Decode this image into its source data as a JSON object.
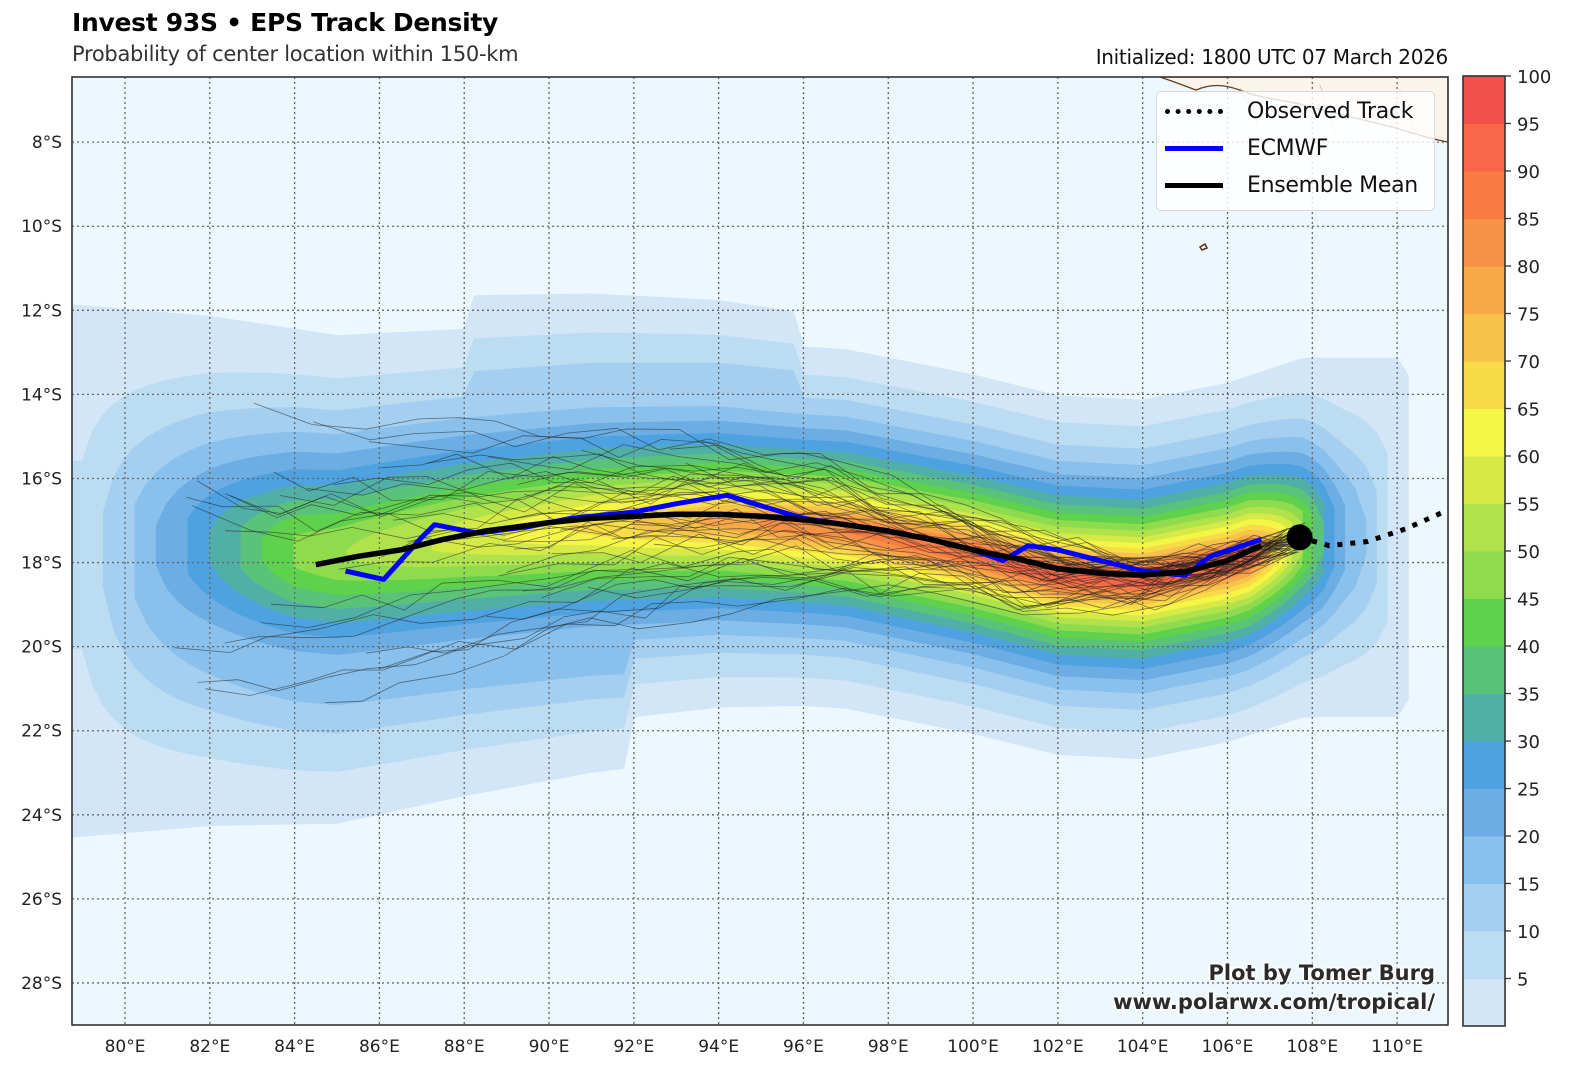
{
  "header": {
    "title": "Invest 93S • EPS Track Density",
    "subtitle": "Probability of center location within 150-km",
    "initialized": "Initialized: 1800 UTC 07 March 2026"
  },
  "legend": {
    "items": [
      {
        "label": "Observed Track",
        "style": "dotted",
        "color": "#000000"
      },
      {
        "label": "ECMWF",
        "style": "solid",
        "color": "#0000ff"
      },
      {
        "label": "Ensemble Mean",
        "style": "solid",
        "color": "#000000"
      }
    ]
  },
  "credit": {
    "line1": "Plot by Tomer Burg",
    "line2": "www.polarwx.com/tropical/"
  },
  "chart_data": {
    "type": "heatmap",
    "title": "Invest 93S • EPS Track Density",
    "subtitle": "Probability of center location within 150-km",
    "xlim": [
      78.75,
      111.2
    ],
    "ylim": [
      -29.0,
      -6.45
    ],
    "grid": true,
    "legend_position": "top-right",
    "x_ticks": [
      {
        "value": 80,
        "label": "80°E"
      },
      {
        "value": 82,
        "label": "82°E"
      },
      {
        "value": 84,
        "label": "84°E"
      },
      {
        "value": 86,
        "label": "86°E"
      },
      {
        "value": 88,
        "label": "88°E"
      },
      {
        "value": 90,
        "label": "90°E"
      },
      {
        "value": 92,
        "label": "92°E"
      },
      {
        "value": 94,
        "label": "94°E"
      },
      {
        "value": 96,
        "label": "96°E"
      },
      {
        "value": 98,
        "label": "98°E"
      },
      {
        "value": 100,
        "label": "100°E"
      },
      {
        "value": 102,
        "label": "102°E"
      },
      {
        "value": 104,
        "label": "104°E"
      },
      {
        "value": 106,
        "label": "106°E"
      },
      {
        "value": 108,
        "label": "108°E"
      },
      {
        "value": 110,
        "label": "110°E"
      }
    ],
    "y_ticks": [
      {
        "value": -8,
        "label": "8°S"
      },
      {
        "value": -10,
        "label": "10°S"
      },
      {
        "value": -12,
        "label": "12°S"
      },
      {
        "value": -14,
        "label": "14°S"
      },
      {
        "value": -16,
        "label": "16°S"
      },
      {
        "value": -18,
        "label": "18°S"
      },
      {
        "value": -20,
        "label": "20°S"
      },
      {
        "value": -22,
        "label": "22°S"
      },
      {
        "value": -24,
        "label": "24°S"
      },
      {
        "value": -26,
        "label": "26°S"
      },
      {
        "value": -28,
        "label": "28°S"
      }
    ],
    "colorbar": {
      "min": 0,
      "max": 100,
      "step": 5,
      "tick_labels": [
        "5",
        "10",
        "15",
        "20",
        "25",
        "30",
        "35",
        "40",
        "45",
        "50",
        "55",
        "60",
        "65",
        "70",
        "75",
        "80",
        "85",
        "90",
        "95",
        "100"
      ],
      "colors": [
        "#d2e6f8",
        "#bcdcf2",
        "#a5cff0",
        "#89c0ec",
        "#6cade3",
        "#4ea2e0",
        "#52afa8",
        "#5bc27a",
        "#5fd14d",
        "#8edb4e",
        "#b0e24c",
        "#d5ea46",
        "#f5f546",
        "#f7dc48",
        "#f7c34a",
        "#f7a847",
        "#f79145",
        "#f97b44",
        "#f86747",
        "#f2504a"
      ]
    },
    "series": [
      {
        "name": "Ensemble Mean",
        "color": "#000000",
        "style": "solid",
        "points": [
          [
            84.5,
            -18.05
          ],
          [
            85.5,
            -17.85
          ],
          [
            86.5,
            -17.7
          ],
          [
            87.5,
            -17.45
          ],
          [
            88.5,
            -17.25
          ],
          [
            90,
            -17.05
          ],
          [
            91,
            -16.95
          ],
          [
            92,
            -16.9
          ],
          [
            93,
            -16.85
          ],
          [
            94,
            -16.85
          ],
          [
            95,
            -16.9
          ],
          [
            96,
            -16.98
          ],
          [
            97,
            -17.1
          ],
          [
            98,
            -17.25
          ],
          [
            99,
            -17.45
          ],
          [
            100,
            -17.7
          ],
          [
            101,
            -17.9
          ],
          [
            102,
            -18.15
          ],
          [
            103,
            -18.25
          ],
          [
            104,
            -18.3
          ],
          [
            105,
            -18.22
          ],
          [
            106,
            -17.95
          ],
          [
            106.8,
            -17.6
          ]
        ]
      },
      {
        "name": "ECMWF",
        "color": "#0000ff",
        "style": "solid",
        "points": [
          [
            85.2,
            -18.2
          ],
          [
            86.1,
            -18.4
          ],
          [
            87.0,
            -17.4
          ],
          [
            87.3,
            -17.1
          ],
          [
            88.3,
            -17.3
          ],
          [
            89.5,
            -17.15
          ],
          [
            90.5,
            -16.95
          ],
          [
            92,
            -16.8
          ],
          [
            93,
            -16.6
          ],
          [
            94.2,
            -16.4
          ],
          [
            95,
            -16.65
          ],
          [
            96,
            -16.95
          ],
          [
            97,
            -17.1
          ],
          [
            98,
            -17.25
          ],
          [
            99,
            -17.45
          ],
          [
            100,
            -17.7
          ],
          [
            100.7,
            -17.95
          ],
          [
            101.3,
            -17.6
          ],
          [
            102,
            -17.7
          ],
          [
            103,
            -17.95
          ],
          [
            104,
            -18.2
          ],
          [
            105,
            -18.3
          ],
          [
            105.6,
            -17.85
          ],
          [
            106.8,
            -17.45
          ]
        ]
      },
      {
        "name": "Observed Track",
        "color": "#000000",
        "style": "dotted",
        "points": [
          [
            107.7,
            -17.4
          ],
          [
            108.4,
            -17.6
          ],
          [
            109.3,
            -17.5
          ],
          [
            110.2,
            -17.2
          ],
          [
            111.2,
            -16.75
          ]
        ]
      }
    ],
    "current_position": [
      107.7,
      -17.4
    ],
    "density_core": {
      "axis": [
        [
          79.0,
          -17.6
        ],
        [
          82,
          -17.6
        ],
        [
          85,
          -17.8
        ],
        [
          88,
          -17.4
        ],
        [
          91,
          -17.1
        ],
        [
          94,
          -17.0
        ],
        [
          97,
          -17.2
        ],
        [
          100,
          -17.8
        ],
        [
          102,
          -18.3
        ],
        [
          104,
          -18.4
        ],
        [
          106,
          -18.0
        ],
        [
          107.8,
          -17.4
        ]
      ],
      "peak_region_lon": [
        101,
        106
      ],
      "peak_value_pct": 95
    }
  }
}
